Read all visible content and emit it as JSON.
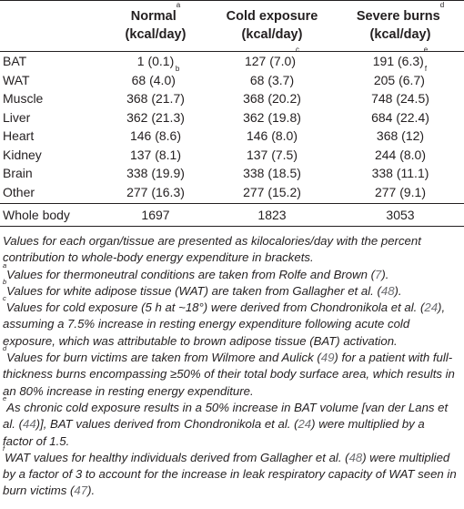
{
  "table": {
    "headers": [
      {
        "line1": "",
        "line2": "",
        "sup": ""
      },
      {
        "line1": "Normal",
        "sup": "a",
        "line2": "(kcal/day)"
      },
      {
        "line1": "Cold exposure",
        "sup": "",
        "line2": "(kcal/day)"
      },
      {
        "line1": "Severe burns",
        "sup": "d",
        "line2": "(kcal/day)"
      }
    ],
    "rows": [
      {
        "organ": "BAT",
        "normal": "1 (0.1)",
        "normal_sup": "",
        "cold": "127 (7.0)",
        "cold_sup": "c",
        "burns": "191 (6.3)",
        "burns_sup": "e"
      },
      {
        "organ": "WAT",
        "normal": "68 (4.0)",
        "normal_sup": "b",
        "cold": "68 (3.7)",
        "cold_sup": "",
        "burns": "205 (6.7)",
        "burns_sup": "f"
      },
      {
        "organ": "Muscle",
        "normal": "368 (21.7)",
        "normal_sup": "",
        "cold": "368 (20.2)",
        "cold_sup": "",
        "burns": "748 (24.5)",
        "burns_sup": ""
      },
      {
        "organ": "Liver",
        "normal": "362 (21.3)",
        "normal_sup": "",
        "cold": "362 (19.8)",
        "cold_sup": "",
        "burns": "684 (22.4)",
        "burns_sup": ""
      },
      {
        "organ": "Heart",
        "normal": "146 (8.6)",
        "normal_sup": "",
        "cold": "146 (8.0)",
        "cold_sup": "",
        "burns": "368 (12)",
        "burns_sup": ""
      },
      {
        "organ": "Kidney",
        "normal": "137 (8.1)",
        "normal_sup": "",
        "cold": "137 (7.5)",
        "cold_sup": "",
        "burns": "244 (8.0)",
        "burns_sup": ""
      },
      {
        "organ": "Brain",
        "normal": "338 (19.9)",
        "normal_sup": "",
        "cold": "338 (18.5)",
        "cold_sup": "",
        "burns": "338 (11.1)",
        "burns_sup": ""
      },
      {
        "organ": "Other",
        "normal": "277 (16.3)",
        "normal_sup": "",
        "cold": "277 (15.2)",
        "cold_sup": "",
        "burns": "277 (9.1)",
        "burns_sup": ""
      }
    ],
    "total": {
      "organ": "Whole body",
      "normal": "1697",
      "cold": "1823",
      "burns": "3053"
    }
  },
  "notes": {
    "main": "Values for each organ/tissue are presented as kilocalories/day with the percent contribution to whole-body energy expenditure in brackets.",
    "a": {
      "sup": "a",
      "text_before": "Values for thermoneutral conditions are taken from Rolfe and Brown (",
      "ref": "7",
      "text_after": ")."
    },
    "b": {
      "sup": "b",
      "text_before": "Values for white adipose tissue (WAT) are taken from Gallagher et al. (",
      "ref": "48",
      "text_after": ")."
    },
    "c": {
      "sup": "c",
      "text_before": "Values for cold exposure (5 h at ~18°) were derived from Chondronikola et al. (",
      "ref": "24",
      "text_after": "), assuming a 7.5% increase in resting energy expenditure following acute cold exposure, which was attributable to brown adipose tissue (BAT) activation."
    },
    "d": {
      "sup": "d",
      "text_before": "Values for burn victims are taken from Wilmore and Aulick (",
      "ref": "49",
      "text_after": ") for a patient with full-thickness burns encompassing ≥50% of their total body surface area, which results in an 80% increase in resting energy expenditure."
    },
    "e": {
      "sup": "e",
      "text_before": "As chronic cold exposure results in a 50% increase in BAT volume [van der Lans et al. (",
      "ref": "44",
      "text_mid": ")], BAT values derived from Chondronikola et al. (",
      "ref2": "24",
      "text_after": ") were multiplied by a factor of 1.5."
    },
    "f": {
      "sup": "f",
      "text_before": "WAT values for healthy individuals derived from Gallagher et al. (",
      "ref": "48",
      "text_mid": ") were multiplied by a factor of 3 to account for the increase in leak respiratory capacity of WAT seen in burn victims (",
      "ref2": "47",
      "text_after": ")."
    }
  }
}
